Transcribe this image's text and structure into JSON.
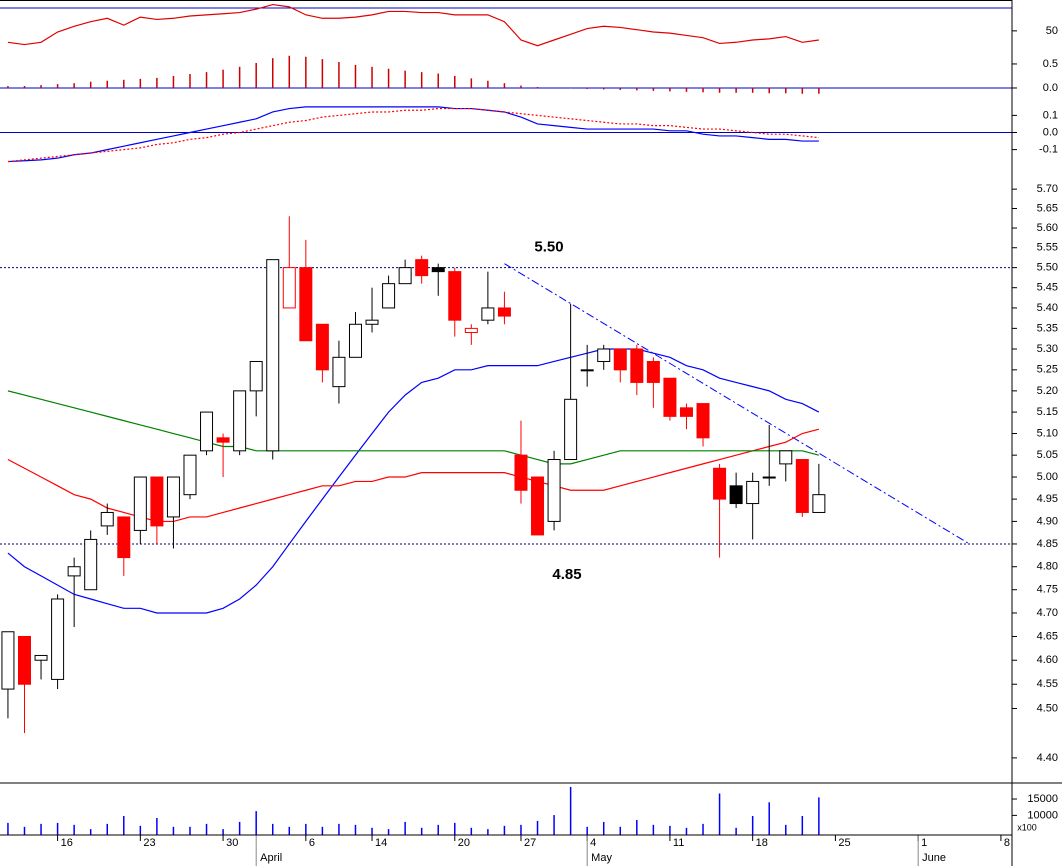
{
  "chart_data": [
    {
      "type": "line",
      "ylim": [
        0,
        77
      ],
      "yticks": [
        50
      ],
      "ref_lines": [
        70
      ],
      "series": [
        {
          "color": "#e00000",
          "values": [
            40,
            38,
            40,
            49,
            54,
            58,
            61,
            55,
            62,
            60,
            61,
            63,
            64,
            65,
            66,
            69,
            73,
            71,
            64,
            61,
            61,
            62,
            64,
            67,
            67,
            66,
            66,
            64,
            64,
            64,
            58,
            42,
            37,
            42,
            47,
            52,
            54,
            53,
            51,
            49,
            48,
            46,
            44,
            39,
            40,
            42,
            43,
            45,
            40,
            42
          ]
        }
      ]
    },
    {
      "type": "bar",
      "ylim": [
        -0.25,
        1.83
      ],
      "yticks": [
        0.5,
        {
          "value": 0,
          "label": "0.0"
        }
      ],
      "ref_lines": [
        0
      ],
      "color": "#cc0000",
      "values": [
        0.04,
        0.04,
        0.06,
        0.08,
        0.1,
        0.13,
        0.15,
        0.17,
        0.19,
        0.21,
        0.25,
        0.29,
        0.33,
        0.38,
        0.44,
        0.52,
        0.62,
        0.67,
        0.65,
        0.6,
        0.54,
        0.48,
        0.44,
        0.4,
        0.36,
        0.33,
        0.3,
        0.25,
        0.2,
        0.15,
        0.1,
        0.05,
        0.02,
        0,
        -0.01,
        -0.02,
        -0.03,
        -0.04,
        -0.05,
        -0.06,
        -0.07,
        -0.08,
        -0.09,
        -0.1,
        -0.1,
        -0.1,
        -0.11,
        -0.11,
        -0.12,
        -0.12
      ]
    },
    {
      "type": "line",
      "ylim": [
        -0.19,
        0.19
      ],
      "yticks": [
        0.1,
        {
          "value": 0,
          "label": "0.0"
        },
        -0.1
      ],
      "ref_lines": [
        0
      ],
      "series": [
        {
          "color": "#0000ff",
          "style": "solid",
          "values": [
            -0.17,
            -0.165,
            -0.16,
            -0.15,
            -0.13,
            -0.12,
            -0.1,
            -0.08,
            -0.06,
            -0.04,
            -0.02,
            0,
            0.02,
            0.04,
            0.06,
            0.08,
            0.12,
            0.14,
            0.15,
            0.15,
            0.15,
            0.15,
            0.15,
            0.15,
            0.15,
            0.15,
            0.15,
            0.14,
            0.14,
            0.13,
            0.12,
            0.09,
            0.05,
            0.04,
            0.03,
            0.02,
            0.02,
            0.02,
            0.02,
            0.02,
            0.01,
            0.01,
            -0.01,
            -0.02,
            -0.02,
            -0.03,
            -0.04,
            -0.04,
            -0.05,
            -0.05
          ]
        },
        {
          "color": "#ff0000",
          "style": "dotted",
          "values": [
            -0.17,
            -0.16,
            -0.15,
            -0.14,
            -0.13,
            -0.12,
            -0.11,
            -0.1,
            -0.09,
            -0.07,
            -0.06,
            -0.04,
            -0.03,
            -0.01,
            0,
            0.02,
            0.04,
            0.06,
            0.07,
            0.09,
            0.1,
            0.11,
            0.12,
            0.12,
            0.13,
            0.13,
            0.14,
            0.14,
            0.14,
            0.13,
            0.12,
            0.11,
            0.1,
            0.09,
            0.08,
            0.07,
            0.06,
            0.05,
            0.05,
            0.04,
            0.04,
            0.03,
            0.02,
            0.02,
            0.01,
            0,
            -0.01,
            -0.01,
            -0.02,
            -0.03
          ]
        }
      ]
    },
    {
      "type": "candlestick",
      "log": true,
      "ylim": [
        4.35,
        5.763
      ],
      "yticks": [
        {
          "value": 5.7,
          "label": "5.70"
        },
        {
          "value": 5.65,
          "label": "5.65"
        },
        {
          "value": 5.6,
          "label": "5.60"
        },
        {
          "value": 5.55,
          "label": "5.55"
        },
        {
          "value": 5.5,
          "label": "5.50"
        },
        {
          "value": 5.45,
          "label": "5.45"
        },
        {
          "value": 5.4,
          "label": "5.40"
        },
        {
          "value": 5.35,
          "label": "5.35"
        },
        {
          "value": 5.3,
          "label": "5.30"
        },
        {
          "value": 5.25,
          "label": "5.25"
        },
        {
          "value": 5.2,
          "label": "5.20"
        },
        {
          "value": 5.15,
          "label": "5.15"
        },
        {
          "value": 5.1,
          "label": "5.10"
        },
        {
          "value": 5.05,
          "label": "5.05"
        },
        {
          "value": 5,
          "label": "5.00"
        },
        {
          "value": 4.95,
          "label": "4.95"
        },
        {
          "value": 4.9,
          "label": "4.90"
        },
        {
          "value": 4.85,
          "label": "4.85"
        },
        {
          "value": 4.8,
          "label": "4.80"
        },
        {
          "value": 4.75,
          "label": "4.75"
        },
        {
          "value": 4.7,
          "label": "4.70"
        },
        {
          "value": 4.65,
          "label": "4.65"
        },
        {
          "value": 4.6,
          "label": "4.60"
        },
        {
          "value": 4.55,
          "label": "4.55"
        },
        {
          "value": 4.5,
          "label": "4.50"
        },
        {
          "value": 4.4,
          "label": "4.40"
        }
      ],
      "open": [
        4.54,
        4.65,
        4.6,
        4.56,
        4.78,
        4.75,
        4.89,
        4.91,
        4.88,
        5.0,
        4.91,
        4.96,
        5.06,
        5.09,
        5.06,
        5.2,
        5.06,
        5.5,
        5.5,
        5.36,
        5.21,
        5.28,
        5.36,
        5.4,
        5.46,
        5.52,
        5.5,
        5.49,
        5.35,
        5.37,
        5.4,
        5.05,
        5.0,
        4.9,
        5.04,
        5.25,
        5.27,
        5.3,
        5.3,
        5.27,
        5.23,
        5.16,
        5.17,
        5.02,
        4.98,
        4.94,
        5.0,
        5.03,
        5.04,
        4.92
      ],
      "high": [
        4.66,
        4.65,
        4.61,
        4.74,
        4.82,
        4.88,
        4.94,
        4.91,
        5.0,
        5.0,
        5.0,
        5.05,
        5.15,
        5.1,
        5.2,
        5.27,
        5.52,
        5.63,
        5.57,
        5.36,
        5.32,
        5.39,
        5.45,
        5.48,
        5.52,
        5.53,
        5.51,
        5.5,
        5.36,
        5.49,
        5.44,
        5.13,
        5.0,
        5.06,
        5.41,
        5.31,
        5.31,
        5.3,
        5.31,
        5.28,
        5.23,
        5.17,
        5.17,
        5.03,
        5.01,
        5.01,
        5.12,
        5.06,
        5.04,
        5.03
      ],
      "low": [
        4.48,
        4.45,
        4.56,
        4.54,
        4.67,
        4.75,
        4.87,
        4.78,
        4.85,
        4.85,
        4.84,
        4.95,
        5.05,
        5.0,
        5.05,
        5.14,
        5.04,
        5.4,
        5.32,
        5.22,
        5.17,
        5.28,
        5.34,
        5.4,
        5.46,
        5.46,
        5.43,
        5.33,
        5.31,
        5.36,
        5.36,
        4.94,
        4.87,
        4.88,
        5.04,
        5.21,
        5.25,
        5.22,
        5.19,
        5.16,
        5.13,
        5.11,
        5.07,
        4.82,
        4.93,
        4.86,
        4.98,
        4.99,
        4.91,
        4.92
      ],
      "close": [
        4.66,
        4.55,
        4.61,
        4.73,
        4.8,
        4.86,
        4.92,
        4.82,
        5.0,
        4.89,
        5.0,
        5.05,
        5.15,
        5.08,
        5.2,
        5.27,
        5.52,
        5.4,
        5.32,
        5.25,
        5.28,
        5.36,
        5.37,
        5.46,
        5.5,
        5.48,
        5.49,
        5.37,
        5.34,
        5.4,
        5.38,
        4.97,
        4.87,
        5.04,
        5.18,
        5.25,
        5.3,
        5.25,
        5.22,
        5.22,
        5.14,
        5.14,
        5.09,
        4.95,
        4.94,
        4.99,
        5.0,
        5.06,
        4.92,
        4.96
      ],
      "colors": [
        "#ffffff",
        "#ff0000",
        "#ffffff",
        "#ffffff",
        "#ffffff",
        "#ffffff",
        "#ffffff",
        "#ff0000",
        "#ffffff",
        "#ff0000",
        "#ffffff",
        "#ffffff",
        "#ffffff",
        "#ff0000",
        "#ffffff",
        "#ffffff",
        "#ffffff",
        "#ffffff",
        "#ff0000",
        "#ff0000",
        "#ffffff",
        "#ffffff",
        "#ffffff",
        "#ffffff",
        "#ffffff",
        "#ff0000",
        "#000000",
        "#ff0000",
        "#ffffff",
        "#ffffff",
        "#ff0000",
        "#ff0000",
        "#ff0000",
        "#ffffff",
        "#ffffff",
        "#ffffff",
        "#ffffff",
        "#ff0000",
        "#ff0000",
        "#ff0000",
        "#ff0000",
        "#ff0000",
        "#ff0000",
        "#ff0000",
        "#000000",
        "#ffffff",
        "#ffffff",
        "#ffffff",
        "#ff0000",
        "#ffffff"
      ],
      "up_color": "#000000",
      "down_color": "#ff0000",
      "series": [
        {
          "color": "#0000ff",
          "values": [
            4.83,
            4.8,
            4.78,
            4.76,
            4.74,
            4.73,
            4.72,
            4.71,
            4.71,
            4.7,
            4.7,
            4.7,
            4.7,
            4.71,
            4.73,
            4.76,
            4.8,
            4.85,
            4.9,
            4.95,
            5.0,
            5.05,
            5.1,
            5.15,
            5.19,
            5.22,
            5.23,
            5.25,
            5.25,
            5.26,
            5.26,
            5.26,
            5.26,
            5.27,
            5.28,
            5.29,
            5.3,
            5.3,
            5.3,
            5.29,
            5.28,
            5.26,
            5.25,
            5.23,
            5.22,
            5.21,
            5.2,
            5.18,
            5.17,
            5.15
          ]
        },
        {
          "color": "#ff0000",
          "values": [
            5.04,
            5.02,
            5.0,
            4.98,
            4.96,
            4.95,
            4.93,
            4.92,
            4.91,
            4.9,
            4.9,
            4.91,
            4.91,
            4.92,
            4.93,
            4.94,
            4.95,
            4.96,
            4.97,
            4.98,
            4.98,
            4.99,
            4.99,
            5.0,
            5.0,
            5.01,
            5.01,
            5.01,
            5.01,
            5.01,
            5.01,
            5.0,
            4.99,
            4.98,
            4.97,
            4.97,
            4.97,
            4.98,
            4.99,
            5.0,
            5.01,
            5.02,
            5.03,
            5.04,
            5.05,
            5.06,
            5.07,
            5.08,
            5.1,
            5.11
          ]
        },
        {
          "color": "#008000",
          "values": [
            5.2,
            5.19,
            5.18,
            5.17,
            5.16,
            5.15,
            5.14,
            5.13,
            5.12,
            5.11,
            5.1,
            5.09,
            5.08,
            5.07,
            5.07,
            5.06,
            5.06,
            5.06,
            5.06,
            5.06,
            5.06,
            5.06,
            5.06,
            5.06,
            5.06,
            5.06,
            5.06,
            5.06,
            5.06,
            5.06,
            5.06,
            5.05,
            5.04,
            5.03,
            5.03,
            5.04,
            5.05,
            5.06,
            5.06,
            5.06,
            5.06,
            5.06,
            5.06,
            5.06,
            5.06,
            5.06,
            5.06,
            5.06,
            5.06,
            5.05
          ]
        }
      ],
      "hlines": [
        {
          "value": 5.5,
          "label": "5.50"
        },
        {
          "value": 4.85,
          "label": "4.85"
        }
      ],
      "hline_color": "#000080",
      "trendline": {
        "x": [
          30,
          58.1
        ],
        "y": [
          5.51,
          4.85
        ],
        "color": "#0000ff"
      }
    },
    {
      "type": "bar",
      "ylim": [
        4000,
        19900
      ],
      "yticks": [
        15000,
        10000
      ],
      "unit_label": "x100",
      "color": "#0000ff",
      "values": [
        7700,
        6500,
        7400,
        7700,
        7100,
        5800,
        7400,
        9800,
        6800,
        9200,
        6500,
        6500,
        7400,
        5800,
        8000,
        11300,
        7400,
        6500,
        7400,
        6500,
        7400,
        7100,
        6200,
        5800,
        8000,
        6200,
        7100,
        7700,
        6200,
        5800,
        6800,
        7100,
        8300,
        10100,
        18700,
        6500,
        8000,
        6500,
        8600,
        7100,
        6800,
        6200,
        7400,
        16700,
        6200,
        9800,
        14000,
        7100,
        9800,
        15500
      ],
      "xlim": [
        -0.48,
        60.67
      ],
      "xticks": [
        {
          "value": 3,
          "label": "16"
        },
        {
          "value": 8,
          "label": "23"
        },
        {
          "value": 13,
          "label": "30"
        },
        {
          "value": 18,
          "label": "6"
        },
        {
          "value": 22,
          "label": "14"
        },
        {
          "value": 27,
          "label": "20"
        },
        {
          "value": 31,
          "label": "27"
        },
        {
          "value": 35,
          "label": "4"
        },
        {
          "value": 40,
          "label": "11"
        },
        {
          "value": 45,
          "label": "18"
        },
        {
          "value": 50,
          "label": "25"
        },
        {
          "value": 55,
          "label": "1"
        },
        {
          "value": 60,
          "label": "8"
        }
      ],
      "month_ticks": [
        {
          "value": 15,
          "label": "April"
        },
        {
          "value": 35,
          "label": "May"
        },
        {
          "value": 55,
          "label": "June"
        }
      ]
    }
  ]
}
